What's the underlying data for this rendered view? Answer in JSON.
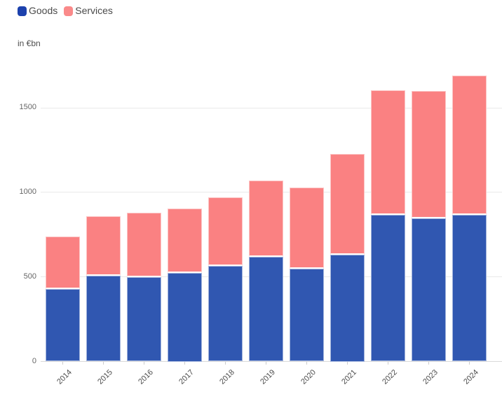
{
  "legend": {
    "items": [
      {
        "id": "goods",
        "label": "Goods",
        "swatch_color": "#1c41ad"
      },
      {
        "id": "services",
        "label": "Services",
        "swatch_color": "#fa8a8a"
      }
    ]
  },
  "axis_title": "in €bn",
  "chart_data": {
    "type": "bar",
    "stacked": true,
    "title": "",
    "xlabel": "",
    "ylabel": "in €bn",
    "categories": [
      "2014",
      "2015",
      "2016",
      "2017",
      "2018",
      "2019",
      "2020",
      "2021",
      "2022",
      "2023",
      "2024"
    ],
    "series": [
      {
        "name": "Goods",
        "color": "#3057b1",
        "values": [
          430,
          505,
          500,
          525,
          565,
          620,
          550,
          630,
          865,
          845,
          865
        ]
      },
      {
        "name": "Services",
        "color": "#fa8182",
        "values": [
          310,
          355,
          380,
          380,
          405,
          450,
          480,
          595,
          740,
          755,
          825
        ]
      }
    ],
    "totals": [
      740,
      860,
      880,
      905,
      970,
      1070,
      1030,
      1225,
      1605,
      1600,
      1690
    ],
    "yticks": [
      0,
      500,
      1000,
      1500
    ],
    "ylim": [
      0,
      1750
    ],
    "grid": true,
    "legend_position": "top-left"
  }
}
